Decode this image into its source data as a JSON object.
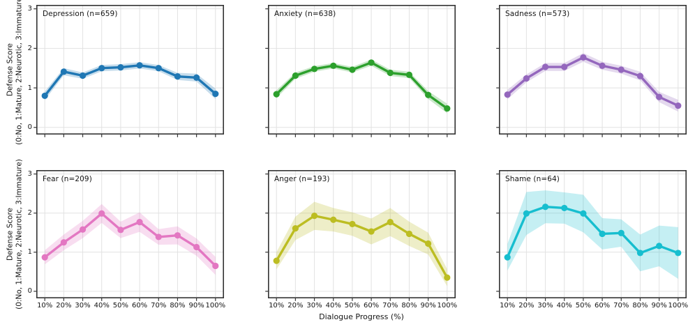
{
  "figure": {
    "background": "#ffffff",
    "xlabel": "Dialogue Progress (%)",
    "ylabel_line1": "Defense Score",
    "ylabel_line2": "(0:No, 1:Mature, 2:Neurotic, 3:Immature)",
    "grid_color": "#e2e2e2",
    "spine_color": "#333333",
    "text_color": "#141414"
  },
  "chart_data": {
    "type": "line",
    "layout": "2x3 grid of subplots, shared axes, CI bands, grid on, no legend",
    "x": [
      10,
      20,
      30,
      40,
      50,
      60,
      70,
      80,
      90,
      100
    ],
    "x_tick_labels": [
      "10%",
      "20%",
      "30%",
      "40%",
      "50%",
      "60%",
      "70%",
      "80%",
      "90%",
      "100%"
    ],
    "y_ticks": [
      0,
      1,
      2,
      3
    ],
    "y_tick_labels": [
      "0",
      "1",
      "2",
      "3"
    ],
    "ylim": [
      -0.18,
      3.1
    ],
    "xlabel": "Dialogue Progress (%)",
    "ylabel": "Defense Score (0:No, 1:Mature, 2:Neurotic, 3:Immature)",
    "panels": [
      {
        "label": "Depression (n=659)",
        "color": "#1f77b4",
        "values": [
          0.8,
          1.41,
          1.31,
          1.5,
          1.52,
          1.57,
          1.5,
          1.29,
          1.26,
          0.85
        ],
        "ci": [
          0.11,
          0.09,
          0.08,
          0.08,
          0.08,
          0.08,
          0.08,
          0.09,
          0.1,
          0.13
        ]
      },
      {
        "label": "Anxiety (n=638)",
        "color": "#2ca02c",
        "values": [
          0.84,
          1.31,
          1.48,
          1.56,
          1.46,
          1.64,
          1.38,
          1.33,
          0.82,
          0.48
        ],
        "ci": [
          0.1,
          0.08,
          0.07,
          0.07,
          0.07,
          0.08,
          0.08,
          0.08,
          0.1,
          0.12
        ]
      },
      {
        "label": "Sadness (n=573)",
        "color": "#9467bd",
        "values": [
          0.83,
          1.24,
          1.53,
          1.53,
          1.77,
          1.56,
          1.46,
          1.3,
          0.77,
          0.55
        ],
        "ci": [
          0.12,
          0.1,
          0.1,
          0.1,
          0.11,
          0.1,
          0.1,
          0.11,
          0.13,
          0.15
        ]
      },
      {
        "label": "Fear (n=209)",
        "color": "#e377c2",
        "values": [
          0.87,
          1.25,
          1.58,
          1.99,
          1.57,
          1.77,
          1.39,
          1.43,
          1.13,
          0.65
        ],
        "ci": [
          0.18,
          0.2,
          0.22,
          0.24,
          0.21,
          0.25,
          0.2,
          0.23,
          0.22,
          0.23
        ]
      },
      {
        "label": "Anger (n=193)",
        "color": "#bcbd22",
        "values": [
          0.78,
          1.61,
          1.93,
          1.83,
          1.72,
          1.53,
          1.77,
          1.47,
          1.22,
          0.35
        ],
        "ci": [
          0.22,
          0.3,
          0.36,
          0.3,
          0.3,
          0.33,
          0.36,
          0.31,
          0.28,
          0.22
        ]
      },
      {
        "label": "Shame (n=64)",
        "color": "#17becf",
        "values": [
          0.87,
          1.99,
          2.16,
          2.13,
          1.99,
          1.47,
          1.49,
          0.98,
          1.16,
          0.98
        ],
        "ci": [
          0.34,
          0.55,
          0.42,
          0.4,
          0.48,
          0.4,
          0.35,
          0.47,
          0.52,
          0.66
        ]
      }
    ]
  }
}
